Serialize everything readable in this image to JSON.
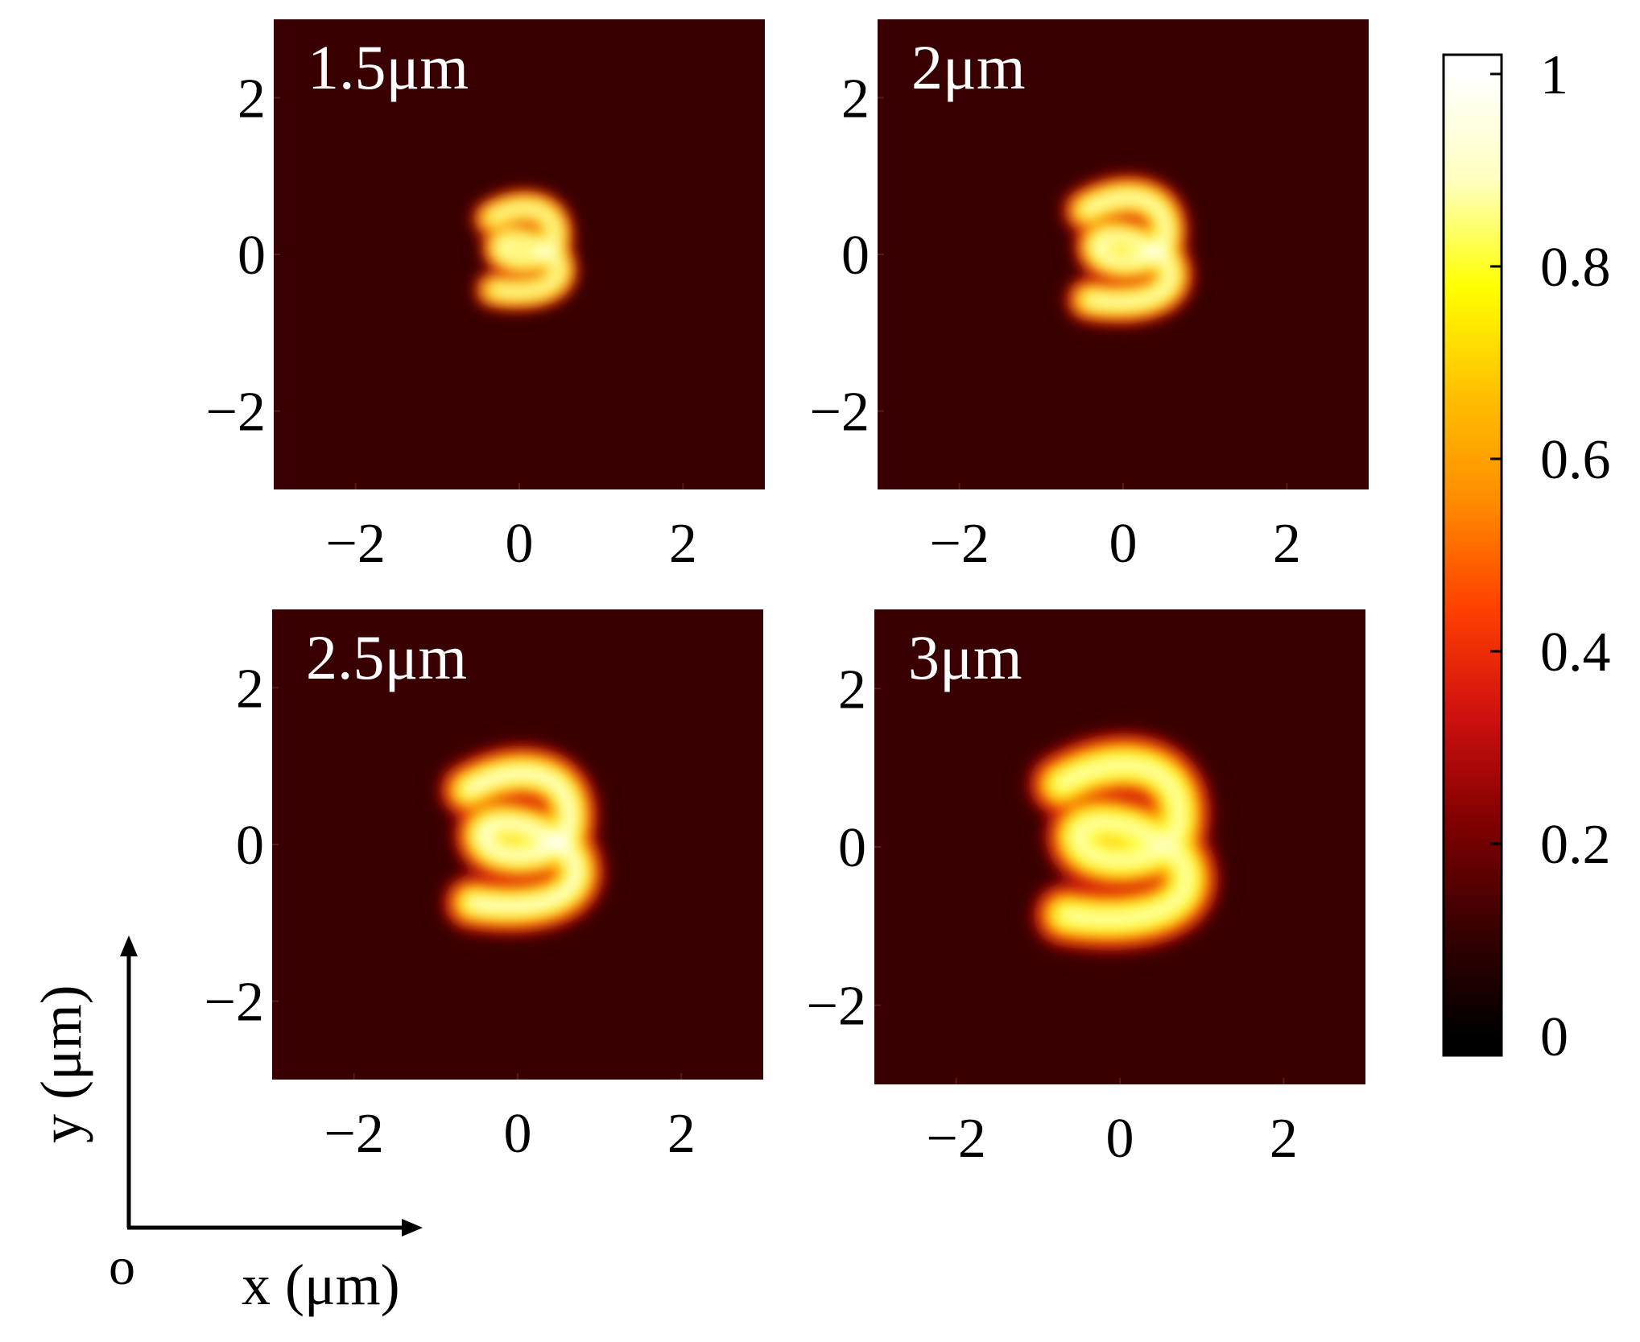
{
  "chart_data": {
    "type": "heatmap",
    "axes_indicator": {
      "origin_label": "o",
      "x_label": "x (μm)",
      "y_label": "y (μm)"
    },
    "colorbar": {
      "ticks": [
        "0",
        "0.2",
        "0.4",
        "0.6",
        "0.8",
        "1"
      ],
      "tick_values": [
        0,
        0.2,
        0.4,
        0.6,
        0.8,
        1
      ],
      "range": [
        -0.02,
        1.02
      ],
      "colormap": [
        "#000000",
        "#380000",
        "#800000",
        "#d01010",
        "#ff4000",
        "#ff8c00",
        "#ffc000",
        "#ffff00",
        "#ffffc0",
        "#ffffff"
      ]
    },
    "panels": [
      {
        "label": "1.5μm",
        "x_ticks": [
          "−2",
          "0",
          "2"
        ],
        "y_ticks": [
          "2",
          "0",
          "−2"
        ],
        "xlim": [
          -3,
          3
        ],
        "ylim": [
          -3,
          3
        ],
        "ring_size": 0.6,
        "peak": 1.0
      },
      {
        "label": "2μm",
        "x_ticks": [
          "−2",
          "0",
          "2"
        ],
        "y_ticks": [
          "2",
          "0",
          "−2"
        ],
        "xlim": [
          -3,
          3
        ],
        "ylim": [
          -3,
          3
        ],
        "ring_size": 0.75,
        "peak": 1.0
      },
      {
        "label": "2.5μm",
        "x_ticks": [
          "−2",
          "0",
          "2"
        ],
        "y_ticks": [
          "2",
          "0",
          "−2"
        ],
        "xlim": [
          -3,
          3
        ],
        "ylim": [
          -3,
          3
        ],
        "ring_size": 0.95,
        "peak": 0.95
      },
      {
        "label": "3μm",
        "x_ticks": [
          "−2",
          "0",
          "2"
        ],
        "y_ticks": [
          "2",
          "0",
          "−2"
        ],
        "xlim": [
          -3,
          3
        ],
        "ylim": [
          -3,
          3
        ],
        "ring_size": 1.1,
        "peak": 0.9
      }
    ],
    "background_color": "#380000"
  }
}
